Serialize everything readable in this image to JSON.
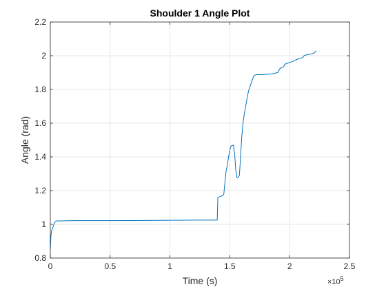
{
  "chart_data": {
    "type": "line",
    "title": "Shoulder 1 Angle Plot",
    "xlabel": "Time (s)",
    "ylabel": "Angle (rad)",
    "xlim": [
      0,
      250000
    ],
    "ylim": [
      0.8,
      2.2
    ],
    "x_ticks": [
      0,
      50000,
      100000,
      150000,
      200000,
      250000
    ],
    "x_tick_labels": [
      "0",
      "0.5",
      "1",
      "1.5",
      "2",
      "2.5"
    ],
    "x_exponent_base": "×10",
    "x_exponent_power": "5",
    "y_ticks": [
      0.8,
      1.0,
      1.2,
      1.4,
      1.6,
      1.8,
      2.0,
      2.2
    ],
    "y_tick_labels": [
      "0.8",
      "1",
      "1.2",
      "1.4",
      "1.6",
      "1.8",
      "2",
      "2.2"
    ],
    "grid": true,
    "line_color": "#0072BD",
    "series": [
      {
        "x": [
          0,
          500,
          1000,
          1500,
          2000,
          3000,
          4000,
          5000,
          20000,
          50000,
          80000,
          100000,
          120000,
          139500,
          140000,
          142000,
          143000,
          144000,
          145000,
          146500,
          147000,
          148000,
          148500,
          149000,
          150000,
          151000,
          153000,
          154000,
          155000,
          156000,
          157000,
          158000,
          159000,
          160000,
          161000,
          162000,
          163000,
          164000,
          165000,
          166000,
          167000,
          168000,
          169000,
          170000,
          171000,
          172000,
          173000,
          174000,
          175000,
          176000,
          180000,
          185000,
          190000,
          192000,
          194000,
          195000,
          196000,
          198000,
          200000,
          202000,
          204000,
          205000,
          207000,
          209000,
          211000,
          212000,
          214000,
          216000,
          218000,
          220000,
          221000,
          222000
        ],
        "y": [
          0.85,
          0.93,
          0.96,
          0.97,
          0.98,
          1.0,
          1.015,
          1.02,
          1.022,
          1.022,
          1.023,
          1.024,
          1.025,
          1.025,
          1.16,
          1.165,
          1.168,
          1.17,
          1.18,
          1.29,
          1.32,
          1.35,
          1.38,
          1.4,
          1.44,
          1.465,
          1.47,
          1.42,
          1.32,
          1.275,
          1.28,
          1.29,
          1.4,
          1.52,
          1.6,
          1.65,
          1.69,
          1.73,
          1.77,
          1.8,
          1.82,
          1.84,
          1.86,
          1.88,
          1.885,
          1.888,
          1.888,
          1.888,
          1.888,
          1.888,
          1.89,
          1.892,
          1.9,
          1.925,
          1.93,
          1.935,
          1.95,
          1.955,
          1.96,
          1.965,
          1.97,
          1.975,
          1.98,
          1.985,
          1.99,
          2.0,
          2.005,
          2.008,
          2.01,
          2.015,
          2.02,
          2.03
        ]
      }
    ]
  }
}
